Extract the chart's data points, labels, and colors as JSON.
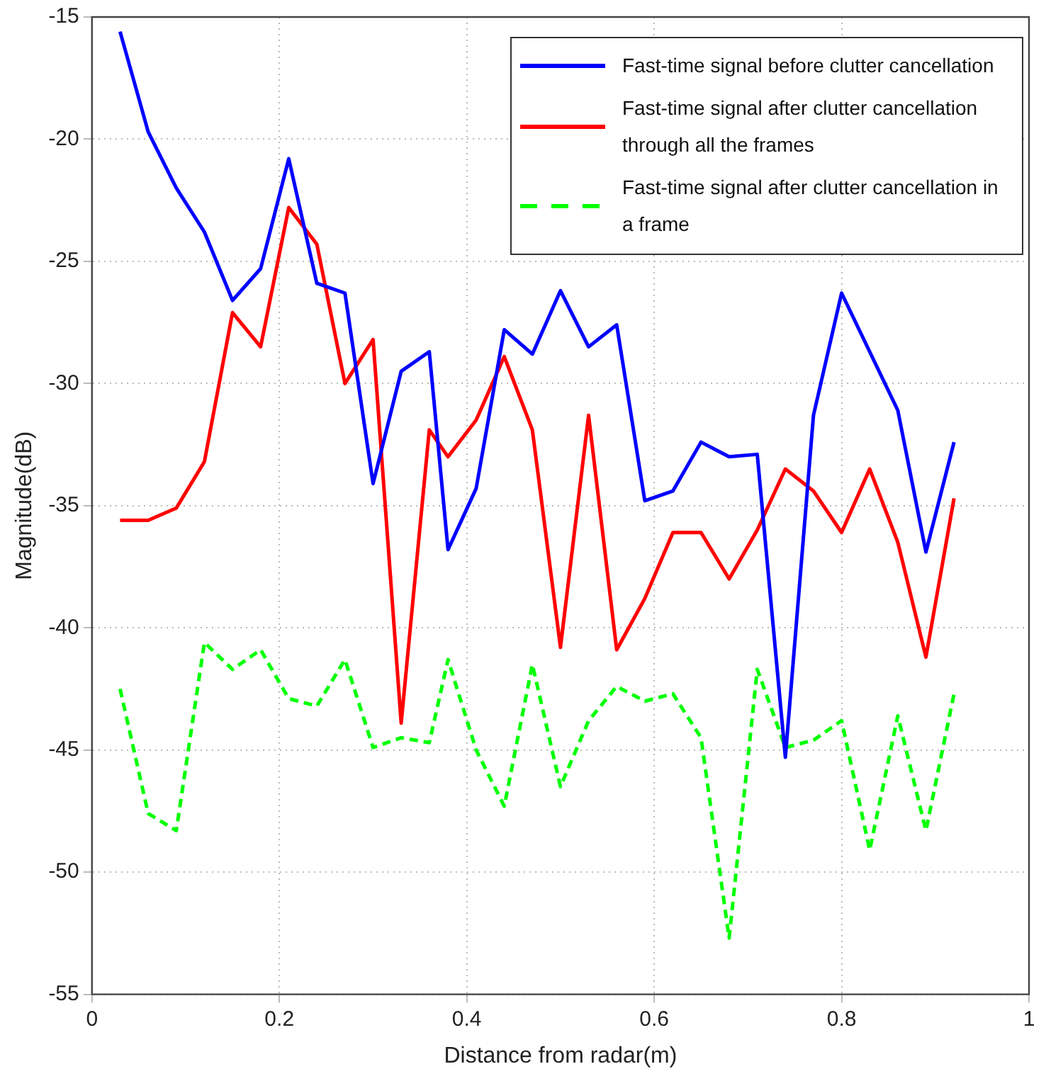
{
  "chart_data": {
    "type": "line",
    "xlabel": "Distance from radar(m)",
    "ylabel": "Magnitude(dB)",
    "x": [
      0.03,
      0.06,
      0.09,
      0.12,
      0.15,
      0.18,
      0.21,
      0.24,
      0.27,
      0.3,
      0.33,
      0.36,
      0.38,
      0.41,
      0.44,
      0.47,
      0.5,
      0.53,
      0.56,
      0.59,
      0.62,
      0.65,
      0.68,
      0.71,
      0.74,
      0.77,
      0.8,
      0.83,
      0.86,
      0.89,
      0.92
    ],
    "xlim": [
      0,
      1
    ],
    "xticks": [
      0,
      0.2,
      0.4,
      0.6,
      0.8,
      1
    ],
    "ylim": [
      -55,
      -15
    ],
    "yticks": [
      -55,
      -50,
      -45,
      -40,
      -35,
      -30,
      -25,
      -20,
      -15
    ],
    "grid": true,
    "legend": "top right",
    "marker": "none",
    "series": [
      {
        "name": "Fast-time signal before clutter cancellation",
        "color": "#0000ff",
        "line_style": "solid",
        "values": [
          -15.6,
          -19.7,
          -22.0,
          -23.8,
          -26.6,
          -25.3,
          -20.8,
          -25.9,
          -26.3,
          -34.1,
          -29.5,
          -28.7,
          -36.8,
          -34.3,
          -27.8,
          -28.8,
          -26.2,
          -28.5,
          -27.6,
          -34.8,
          -34.4,
          -32.4,
          -33.0,
          -32.9,
          -45.3,
          -31.3,
          -26.3,
          -28.7,
          -31.1,
          -36.9,
          -32.4
        ]
      },
      {
        "name": "Fast-time signal after clutter cancellation through all the frames",
        "color": "#ff0000",
        "line_style": "solid",
        "values": [
          -35.6,
          -35.6,
          -35.1,
          -33.2,
          -27.1,
          -28.5,
          -22.8,
          -24.3,
          -30.0,
          -28.2,
          -43.9,
          -31.9,
          -33.0,
          -31.5,
          -28.9,
          -31.9,
          -40.8,
          -31.3,
          -40.9,
          -38.8,
          -36.1,
          -36.1,
          -38.0,
          -36.0,
          -33.5,
          -34.4,
          -36.1,
          -33.5,
          -36.5,
          -41.2,
          -34.7
        ]
      },
      {
        "name": "Fast-time signal after clutter cancellation in a frame",
        "color": "#00ff00",
        "line_style": "dashed",
        "values": [
          -42.5,
          -47.6,
          -48.3,
          -40.6,
          -41.7,
          -40.9,
          -42.9,
          -43.2,
          -41.3,
          -44.9,
          -44.5,
          -44.7,
          -41.3,
          -45.0,
          -47.3,
          -41.5,
          -46.5,
          -43.8,
          -42.4,
          -43.0,
          -42.7,
          -44.5,
          -52.7,
          -41.7,
          -44.9,
          -44.6,
          -43.8,
          -49.1,
          -43.6,
          -48.3,
          -42.7
        ]
      }
    ]
  }
}
